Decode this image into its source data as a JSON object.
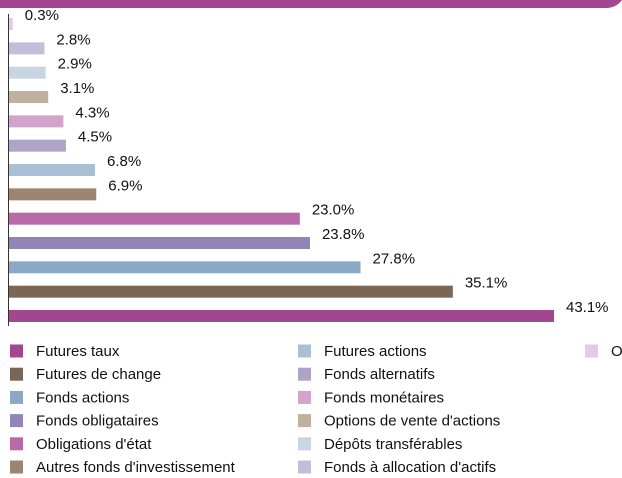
{
  "chart_data": {
    "type": "bar",
    "orientation": "horizontal",
    "categories": [
      "Futures taux",
      "Futures de change",
      "Fonds actions",
      "Fonds obligataires",
      "Obligations d'état",
      "Autres fonds d'investissement",
      "Futures actions",
      "Fonds alternatifs",
      "Fonds monétaires",
      "Options de vente d'actions",
      "Dépôts transférables",
      "Fonds à allocation d'actifs",
      "O"
    ],
    "values": [
      43.1,
      35.1,
      27.8,
      23.8,
      23.0,
      6.9,
      6.8,
      4.5,
      4.3,
      3.1,
      2.9,
      2.8,
      0.3
    ],
    "value_labels": [
      "43.1%",
      "35.1%",
      "27.8%",
      "23.8%",
      "23.0%",
      "6.9%",
      "6.8%",
      "4.5%",
      "4.3%",
      "3.1%",
      "2.9%",
      "2.8%",
      "0.3%"
    ],
    "colors": [
      "#a3468f",
      "#7a6655",
      "#8aa9c6",
      "#9284b5",
      "#b86aa8",
      "#9c8470",
      "#a9bfd6",
      "#b0a3c8",
      "#d4a3cc",
      "#bfb09f",
      "#c8d6e4",
      "#c4bcd9",
      "#e3cbe3"
    ],
    "legend": "bottom"
  }
}
